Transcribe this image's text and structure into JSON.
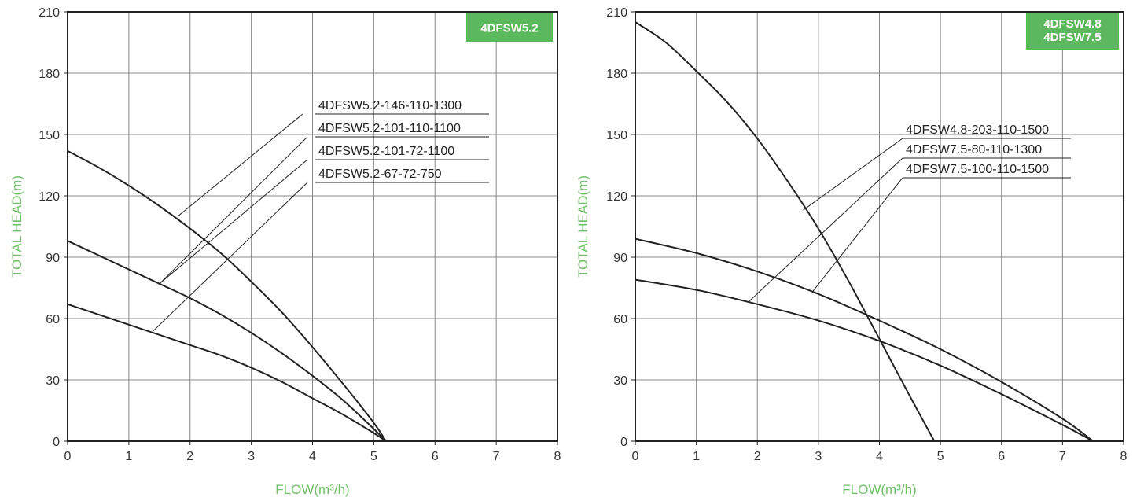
{
  "chart_data": [
    {
      "type": "line",
      "badge": [
        "4DFSW5.2"
      ],
      "xlabel": "FLOW(m³/h)",
      "ylabel": "TOTAL HEAD(m)",
      "xlim": [
        0,
        8
      ],
      "ylim": [
        0,
        210
      ],
      "xticks": [
        0,
        1,
        2,
        3,
        4,
        5,
        6,
        7,
        8
      ],
      "yticks": [
        0,
        30,
        60,
        90,
        120,
        150,
        180,
        210
      ],
      "grid": true,
      "series": [
        {
          "name": "4DFSW5.2-146-110-1300",
          "points": [
            [
              0,
              142
            ],
            [
              0.5,
              134
            ],
            [
              1,
              125
            ],
            [
              1.5,
              115
            ],
            [
              2,
              104
            ],
            [
              2.5,
              92
            ],
            [
              3,
              78
            ],
            [
              3.5,
              63
            ],
            [
              4,
              46
            ],
            [
              4.5,
              28
            ],
            [
              5,
              9
            ],
            [
              5.2,
              0
            ]
          ]
        },
        {
          "name": "4DFSW5.2-101-110-1100",
          "points": [
            [
              0,
              98
            ],
            [
              0.5,
              91
            ],
            [
              1,
              84
            ],
            [
              1.5,
              77
            ],
            [
              2,
              70
            ],
            [
              2.5,
              62
            ],
            [
              3,
              53
            ],
            [
              3.5,
              43
            ],
            [
              4,
              32
            ],
            [
              4.5,
              20
            ],
            [
              5,
              6
            ],
            [
              5.2,
              0
            ]
          ]
        },
        {
          "name": "4DFSW5.2-101-72-1100",
          "points": [
            [
              0,
              98
            ],
            [
              0.5,
              91
            ],
            [
              1,
              84
            ],
            [
              1.5,
              77
            ],
            [
              2,
              70
            ],
            [
              2.5,
              62
            ],
            [
              3,
              53
            ],
            [
              3.5,
              43
            ],
            [
              4,
              32
            ],
            [
              4.5,
              20
            ],
            [
              5,
              6
            ],
            [
              5.2,
              0
            ]
          ]
        },
        {
          "name": "4DFSW5.2-67-72-750",
          "points": [
            [
              0,
              67
            ],
            [
              0.5,
              62
            ],
            [
              1,
              57
            ],
            [
              1.5,
              52
            ],
            [
              2,
              47
            ],
            [
              2.5,
              42
            ],
            [
              3,
              36
            ],
            [
              3.5,
              29
            ],
            [
              4,
              21
            ],
            [
              4.5,
              13
            ],
            [
              5,
              4
            ],
            [
              5.2,
              0
            ]
          ]
        }
      ],
      "callouts": [
        {
          "label_index": 0,
          "x": 1.8,
          "y": 110
        },
        {
          "label_index": 1,
          "x": 1.5,
          "y": 77
        },
        {
          "label_index": 2,
          "x": 1.5,
          "y": 77
        },
        {
          "label_index": 3,
          "x": 1.4,
          "y": 54
        }
      ]
    },
    {
      "type": "line",
      "badge": [
        "4DFSW4.8",
        "4DFSW7.5"
      ],
      "xlabel": "FLOW(m³/h)",
      "ylabel": "TOTAL HEAD(m)",
      "xlim": [
        0,
        8
      ],
      "ylim": [
        0,
        210
      ],
      "xticks": [
        0,
        1,
        2,
        3,
        4,
        5,
        6,
        7,
        8
      ],
      "yticks": [
        0,
        30,
        60,
        90,
        120,
        150,
        180,
        210
      ],
      "grid": true,
      "series": [
        {
          "name": "4DFSW4.8-203-110-1500",
          "points": [
            [
              0,
              205
            ],
            [
              0.5,
              195
            ],
            [
              1,
              181
            ],
            [
              1.5,
              166
            ],
            [
              2,
              148
            ],
            [
              2.5,
              127
            ],
            [
              3,
              104
            ],
            [
              3.5,
              78
            ],
            [
              4,
              50
            ],
            [
              4.5,
              22
            ],
            [
              4.9,
              0
            ]
          ]
        },
        {
          "name": "4DFSW7.5-80-110-1300",
          "points": [
            [
              0,
              79
            ],
            [
              1,
              74
            ],
            [
              2,
              67
            ],
            [
              3,
              59
            ],
            [
              4,
              49
            ],
            [
              5,
              37
            ],
            [
              6,
              23
            ],
            [
              7,
              8
            ],
            [
              7.5,
              0
            ]
          ]
        },
        {
          "name": "4DFSW7.5-100-110-1500",
          "points": [
            [
              0,
              99
            ],
            [
              1,
              92
            ],
            [
              2,
              83
            ],
            [
              3,
              72
            ],
            [
              4,
              59
            ],
            [
              5,
              45
            ],
            [
              6,
              29
            ],
            [
              7,
              11
            ],
            [
              7.5,
              0
            ]
          ]
        }
      ],
      "callouts": [
        {
          "label_index": 0,
          "x": 2.75,
          "y": 113
        },
        {
          "label_index": 1,
          "x": 1.85,
          "y": 68
        },
        {
          "label_index": 2,
          "x": 2.9,
          "y": 73
        }
      ]
    }
  ],
  "colors": {
    "accent": "#5cb85c",
    "axis_title": "#6cbf63",
    "grid": "#888888",
    "curve": "#222222"
  }
}
